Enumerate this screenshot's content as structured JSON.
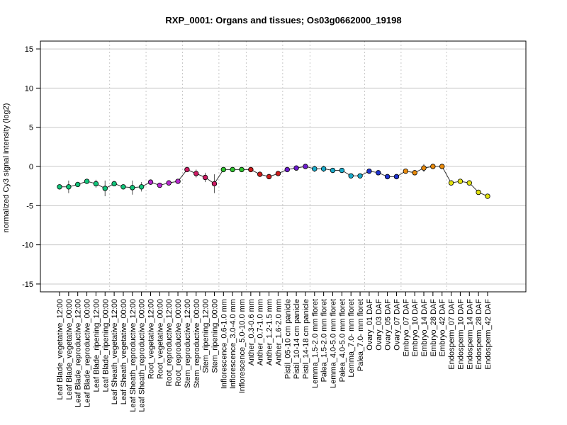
{
  "chart_data": {
    "type": "line",
    "title": "RXP_0001: Organs and tissues; Os03g0662000_19198",
    "xlabel": "",
    "ylabel": "normalized Cy3 signal intensity (log2)",
    "ylim": [
      -16,
      16
    ],
    "yticks": [
      -15,
      -10,
      -5,
      0,
      5,
      10,
      15
    ],
    "ytick_labels": [
      "-15",
      "-10",
      "-5",
      "0",
      "5",
      "10",
      "15"
    ],
    "grid": "horizontal solid at y ticks; vertical dotted between tissue groups",
    "categories": [
      "Leaf Blade_vegetative_12:00",
      "Leaf Blade_vegetative_00:00",
      "Leaf Blade_reproductive_12:00",
      "Leaf Blade_reproductive_00:00",
      "Leaf Blade_ripening_12:00",
      "Leaf Blade_ripening_00:00",
      "Leaf Sheath_vegetative_12:00",
      "Leaf Sheath_vegetative_00:00",
      "Leaf Sheath_reproductive_12:00",
      "Leaf Sheath_reproductive_00:00",
      "Root_vegetative_12:00",
      "Root_vegetative_00:00",
      "Root_reproductive_12:00",
      "Root_reproductive_00:00",
      "Stem_reproductive_12:00",
      "Stem_reproductive_00:00",
      "Stem_ripening_12:00",
      "Stem_ripening_00:00",
      "Inflorescence_0.6-1.0 mm",
      "Inflorescence_3.0-4.0 mm",
      "Inflorescence_5.0-10.0 mm",
      "Anther_0.3-0.6 mm",
      "Anther_0.7-1.0 mm",
      "Anther_1.2-1.5 mm",
      "Anther_1.6-2.0 mm",
      "Pistil_05-10 cm panicle",
      "Pistil_10-14 cm panicle",
      "Pistil_14-18 cm panicle",
      "Lemma_1.5-2.0 mm floret",
      "Palea_1.5-2.0 mm floret",
      "Lemma_4.0-5.0 mm floret",
      "Palea_4.0-5.0 mm floret",
      "Lemma_7.0- mm floret",
      "Palea_7.0- mm floret",
      "Ovary_01 DAF",
      "Ovary_03 DAF",
      "Ovary_05 DAF",
      "Ovary_07 DAF",
      "Embryo_07 DAF",
      "Embryo_10 DAF",
      "Embryo_14 DAF",
      "Embryo_28 DAF",
      "Embryo_42 DAF",
      "Endosperm_07 DAF",
      "Endosperm_10 DAF",
      "Endosperm_14 DAF",
      "Endosperm_28 DAF",
      "Endosperm_42 DAF"
    ],
    "values": [
      -2.6,
      -2.6,
      -2.3,
      -1.9,
      -2.2,
      -2.8,
      -2.2,
      -2.6,
      -2.7,
      -2.6,
      -2.0,
      -2.4,
      -2.1,
      -1.9,
      -0.4,
      -0.9,
      -1.4,
      -2.2,
      -0.4,
      -0.4,
      -0.4,
      -0.4,
      -1.0,
      -1.3,
      -0.9,
      -0.4,
      -0.2,
      0.0,
      -0.3,
      -0.3,
      -0.5,
      -0.5,
      -1.2,
      -1.2,
      -0.6,
      -0.8,
      -1.3,
      -1.3,
      -0.6,
      -0.8,
      -0.2,
      0.0,
      0.0,
      -2.1,
      -1.9,
      -2.1,
      -3.3,
      -3.8
    ],
    "errors": [
      0.2,
      0.8,
      0.2,
      0.3,
      0.5,
      1.0,
      0.2,
      0.3,
      0.9,
      0.6,
      0.2,
      0.2,
      0.2,
      0.2,
      0.2,
      0.5,
      0.6,
      1.2,
      0.2,
      0.2,
      0.2,
      0.2,
      0.2,
      0.2,
      0.2,
      0.2,
      0.2,
      0.2,
      0.4,
      0.4,
      0.2,
      0.2,
      0.2,
      0.2,
      0.2,
      0.2,
      0.2,
      0.2,
      0.2,
      0.2,
      0.5,
      0.2,
      0.2,
      0.2,
      0.2,
      0.2,
      0.3,
      0.2
    ],
    "colors": [
      "#11c47a",
      "#11c47a",
      "#11c47a",
      "#11c47a",
      "#11c47a",
      "#11c47a",
      "#11c47a",
      "#11c47a",
      "#11c47a",
      "#11c47a",
      "#b728cf",
      "#b728cf",
      "#b728cf",
      "#b728cf",
      "#cc1b63",
      "#cc1b63",
      "#cc1b63",
      "#cc1b63",
      "#2ec22e",
      "#2ec22e",
      "#2ec22e",
      "#cc1b1b",
      "#cc1b1b",
      "#cc1b1b",
      "#cc1b1b",
      "#6d1bcf",
      "#6d1bcf",
      "#6d1bcf",
      "#19a9c9",
      "#19a9c9",
      "#19a9c9",
      "#19a9c9",
      "#19a9c9",
      "#19a9c9",
      "#2033d1",
      "#2033d1",
      "#2033d1",
      "#2033d1",
      "#e88a0c",
      "#e88a0c",
      "#e88a0c",
      "#e88a0c",
      "#e88a0c",
      "#e2e20e",
      "#e2e20e",
      "#e2e20e",
      "#e2e20e",
      "#e2e20e"
    ],
    "group_separators_after": [
      5,
      9,
      13,
      17,
      20,
      24,
      27,
      33,
      37,
      42
    ]
  }
}
